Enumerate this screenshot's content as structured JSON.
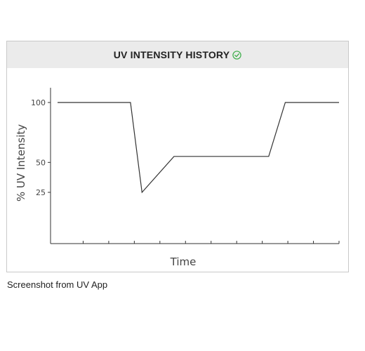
{
  "card": {
    "title": "UV INTENSITY HISTORY",
    "status_icon": "check-circle-icon",
    "status_color": "#3cae49"
  },
  "chart_data": {
    "type": "line",
    "title": "UV INTENSITY HISTORY",
    "xlabel": "Time",
    "ylabel": "% UV Intensity",
    "y_ticks": [
      25,
      50,
      100
    ],
    "x_tick_count": 11,
    "series": [
      {
        "points": [
          [
            0,
            100
          ],
          [
            2.85,
            100
          ],
          [
            3.3,
            25
          ],
          [
            4.55,
            55
          ],
          [
            8.25,
            55
          ],
          [
            8.9,
            100
          ],
          [
            11,
            100
          ]
        ]
      }
    ],
    "grid": false,
    "legend": "none"
  },
  "caption": "Screenshot from UV App"
}
